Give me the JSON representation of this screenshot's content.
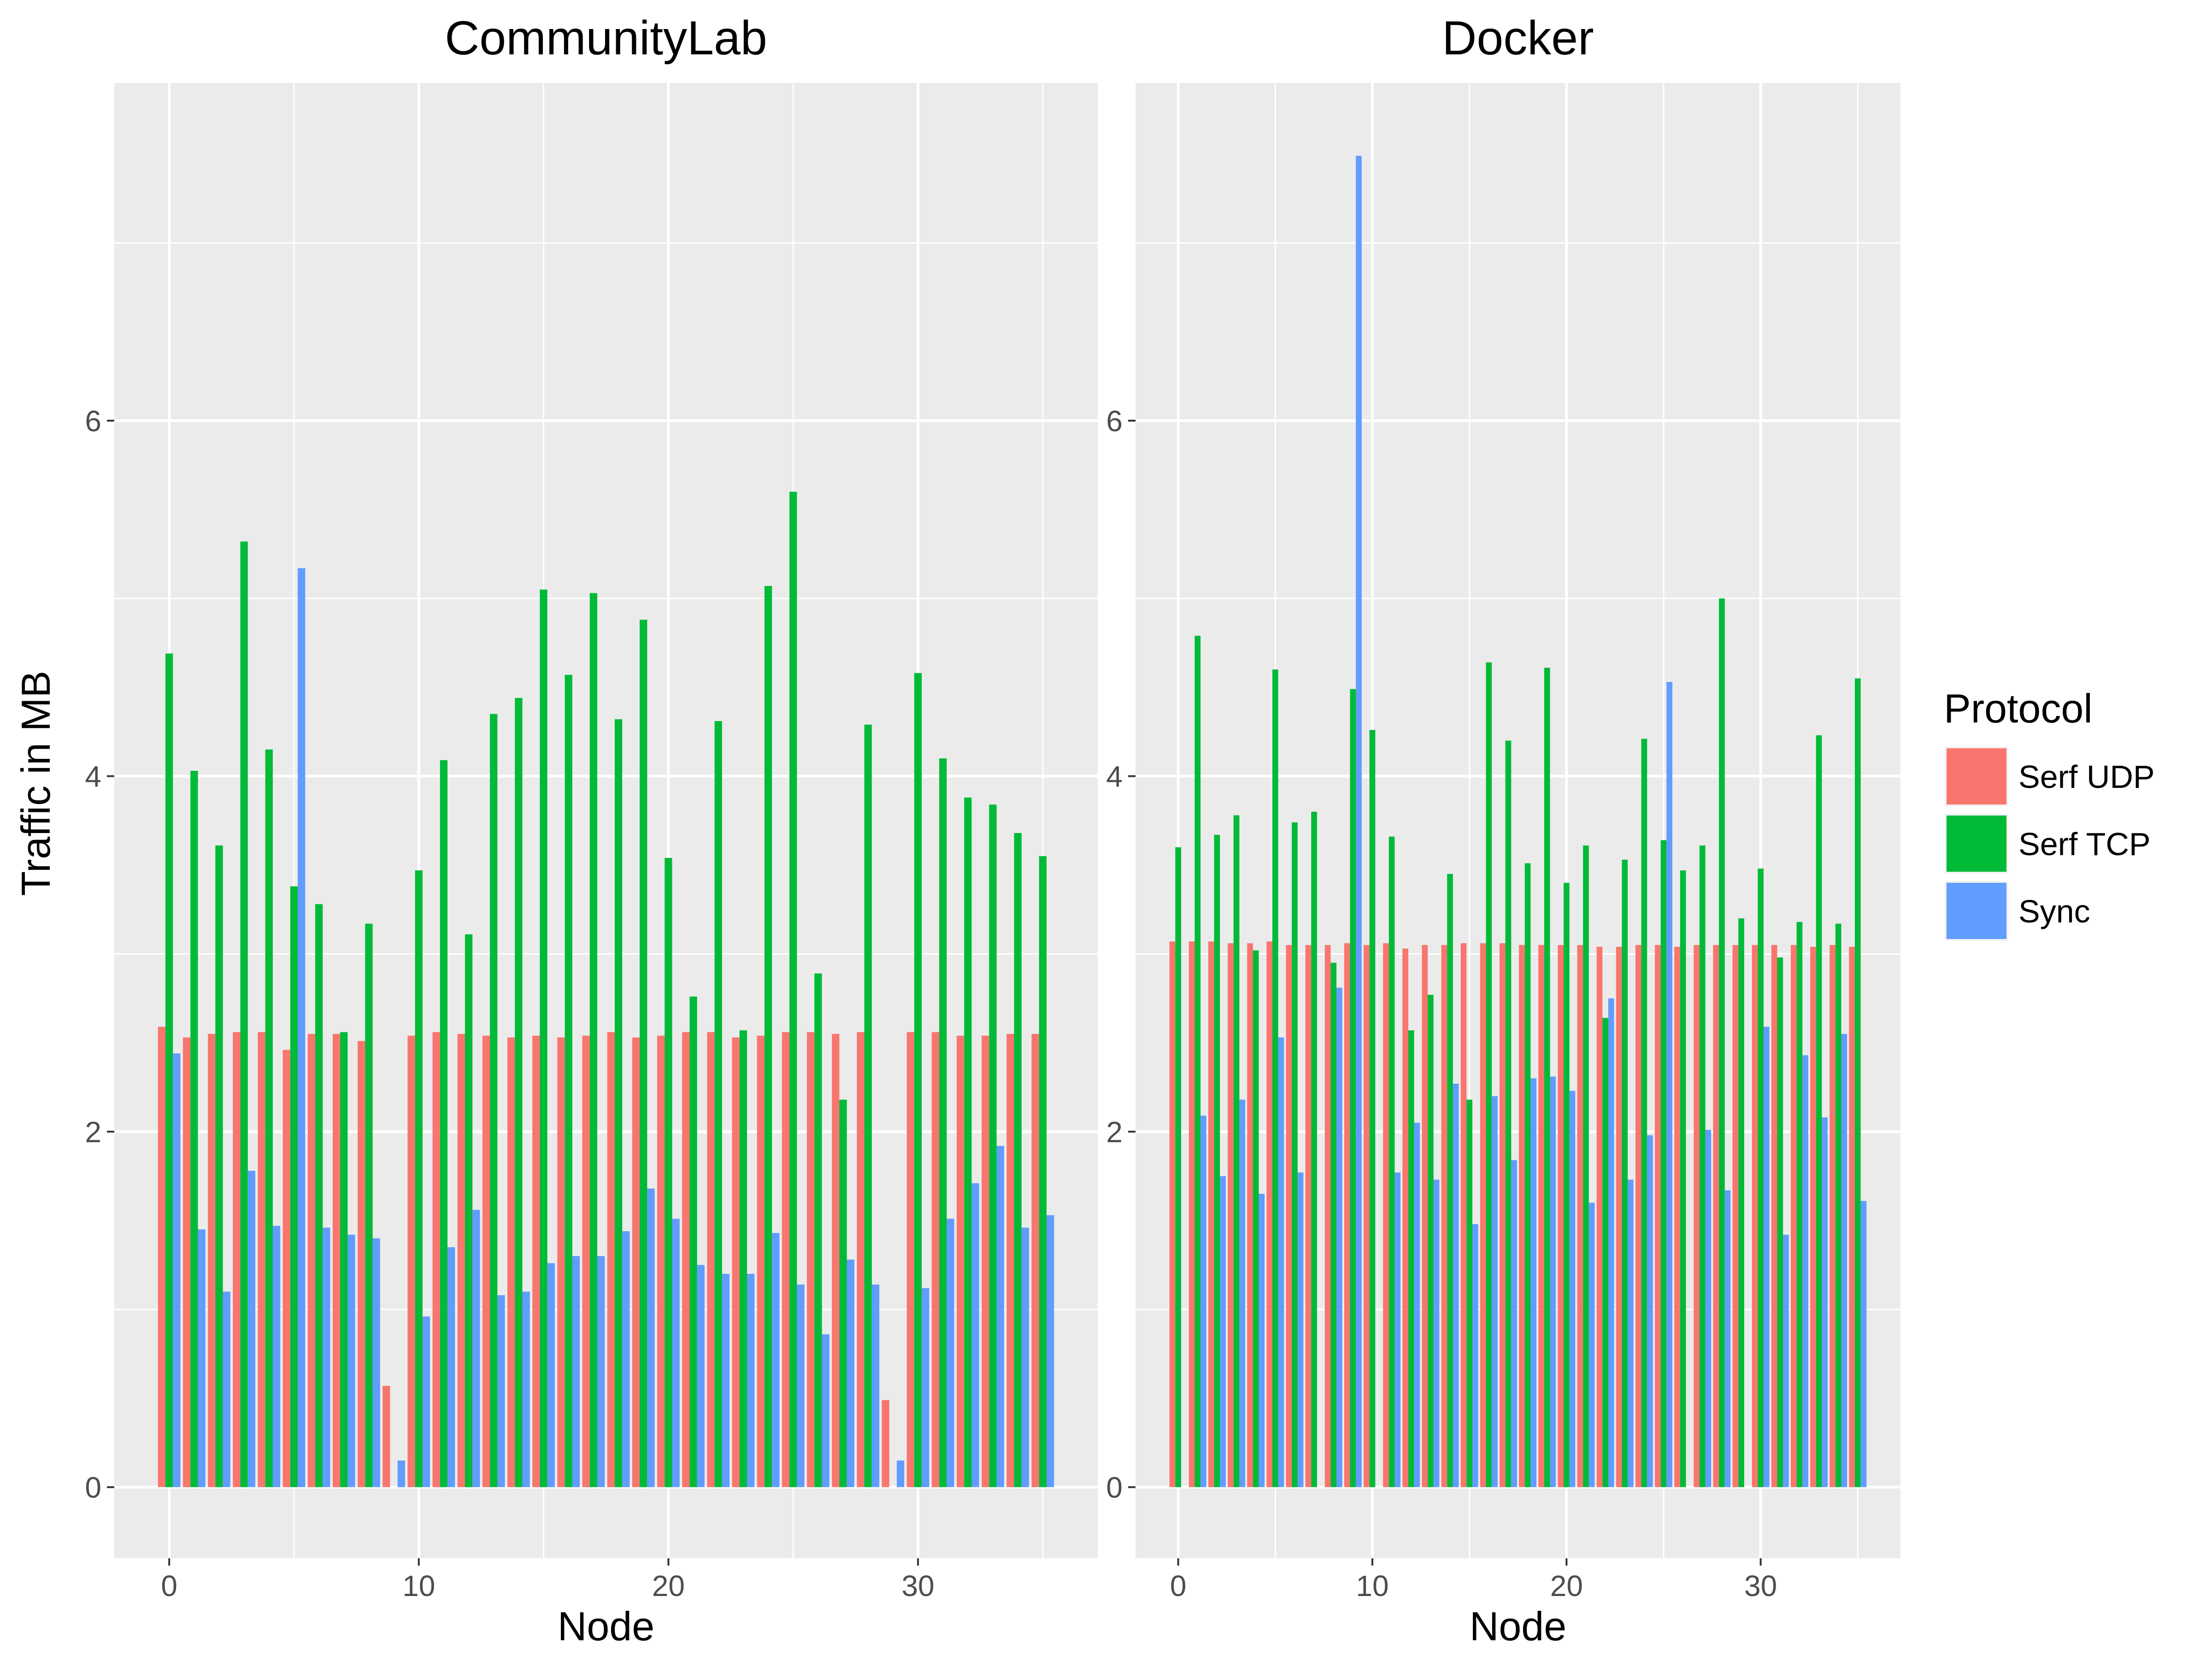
{
  "chart_data": {
    "type": "bar",
    "ylabel": "Traffic in MB",
    "xlabel": "Node",
    "ylim": [
      -0.4,
      7.9
    ],
    "xlim": [
      -2.2,
      37.2
    ],
    "x_ticks": [
      0,
      10,
      20,
      30
    ],
    "y_ticks": [
      0,
      2,
      4,
      6
    ],
    "grid": "on",
    "legend": {
      "title": "Protocol",
      "position": "right",
      "entries": [
        "Serf UDP",
        "Serf TCP",
        "Sync"
      ]
    },
    "colors": {
      "Serf UDP": "#F8766D",
      "Serf TCP": "#00BA38",
      "Sync": "#619CFF",
      "panel_bg": "#EBEBEB",
      "grid": "#FFFFFF"
    },
    "panels": [
      {
        "title": "CommunityLab",
        "x": [
          0,
          1,
          2,
          3,
          4,
          5,
          6,
          7,
          8,
          9,
          10,
          11,
          12,
          13,
          14,
          15,
          16,
          17,
          18,
          19,
          20,
          21,
          22,
          23,
          24,
          25,
          26,
          27,
          28,
          29,
          30,
          31,
          32,
          33,
          34,
          35
        ],
        "series": [
          {
            "name": "Serf UDP",
            "values": [
              2.59,
              2.53,
              2.55,
              2.56,
              2.56,
              2.46,
              2.55,
              2.55,
              2.51,
              0.57,
              2.54,
              2.56,
              2.55,
              2.54,
              2.53,
              2.54,
              2.53,
              2.54,
              2.56,
              2.53,
              2.54,
              2.56,
              2.56,
              2.53,
              2.54,
              2.56,
              2.56,
              2.55,
              2.56,
              0.49,
              2.56,
              2.56,
              2.54,
              2.54,
              2.55,
              2.55
            ]
          },
          {
            "name": "Serf TCP",
            "values": [
              4.69,
              4.03,
              3.61,
              5.32,
              4.15,
              3.38,
              3.28,
              2.56,
              3.17,
              0.0,
              3.47,
              4.09,
              3.11,
              4.35,
              4.44,
              5.05,
              4.57,
              5.03,
              4.32,
              4.88,
              3.54,
              2.76,
              4.31,
              2.57,
              5.07,
              5.6,
              2.89,
              2.18,
              4.29,
              0.0,
              4.58,
              4.1,
              3.88,
              3.84,
              3.68,
              3.55
            ]
          },
          {
            "name": "Sync",
            "values": [
              2.44,
              1.45,
              1.1,
              1.78,
              1.47,
              5.17,
              1.46,
              1.42,
              1.4,
              0.15,
              0.96,
              1.35,
              1.56,
              1.08,
              1.1,
              1.26,
              1.3,
              1.3,
              1.44,
              1.68,
              1.51,
              1.25,
              1.2,
              1.2,
              1.43,
              1.14,
              0.86,
              1.28,
              1.14,
              0.15,
              1.12,
              1.51,
              1.71,
              1.92,
              1.46,
              1.53
            ]
          }
        ]
      },
      {
        "title": "Docker",
        "x": [
          0,
          1,
          2,
          3,
          4,
          5,
          6,
          7,
          8,
          9,
          10,
          11,
          12,
          13,
          14,
          15,
          16,
          17,
          18,
          19,
          20,
          21,
          22,
          23,
          24,
          25,
          26,
          27,
          28,
          29,
          30,
          31,
          32,
          33,
          34,
          35
        ],
        "series": [
          {
            "name": "Serf UDP",
            "values": [
              3.07,
              3.07,
              3.07,
              3.06,
              3.06,
              3.07,
              3.05,
              3.05,
              3.05,
              3.06,
              3.05,
              3.06,
              3.03,
              3.05,
              3.05,
              3.06,
              3.06,
              3.06,
              3.05,
              3.05,
              3.05,
              3.05,
              3.04,
              3.04,
              3.05,
              3.05,
              3.04,
              3.05,
              3.05,
              3.05,
              3.05,
              3.05,
              3.05,
              3.04,
              3.05,
              3.04
            ]
          },
          {
            "name": "Serf TCP",
            "values": [
              3.6,
              4.79,
              3.67,
              3.78,
              3.02,
              4.6,
              3.74,
              3.8,
              2.95,
              4.49,
              4.26,
              3.66,
              2.57,
              2.77,
              3.45,
              2.18,
              4.64,
              4.2,
              3.51,
              4.61,
              3.4,
              3.61,
              2.64,
              3.53,
              4.21,
              3.64,
              3.47,
              3.61,
              5.0,
              3.2,
              3.48,
              2.98,
              3.18,
              4.23,
              3.17,
              4.55
            ]
          },
          {
            "name": "Sync",
            "values": [
              0.0,
              2.09,
              1.75,
              2.18,
              1.65,
              2.53,
              1.77,
              0.0,
              2.81,
              7.49,
              0.0,
              1.77,
              2.05,
              1.73,
              2.27,
              1.48,
              2.2,
              1.84,
              2.3,
              2.31,
              2.23,
              1.6,
              2.75,
              1.73,
              1.98,
              4.53,
              0.0,
              2.01,
              1.67,
              0.0,
              2.59,
              1.42,
              2.43,
              2.08,
              2.55,
              1.61
            ]
          }
        ]
      }
    ]
  }
}
